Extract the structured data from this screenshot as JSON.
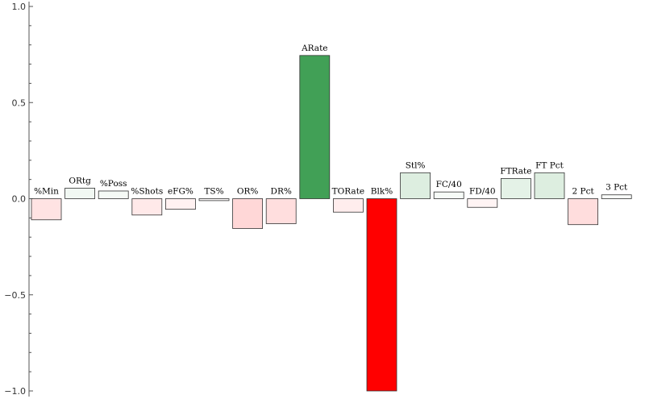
{
  "chart_data": {
    "type": "bar",
    "title": "",
    "xlabel": "",
    "ylabel": "",
    "ylim": [
      -1.0,
      1.0
    ],
    "yticks": [
      "1.0",
      "0.5",
      "0.0",
      "−0.5",
      "−1.0"
    ],
    "ytick_values": [
      1.0,
      0.5,
      0.0,
      -0.5,
      -1.0
    ],
    "grid": false,
    "legend": "none",
    "positive_color": "#007f1c",
    "negative_color": "#ff0000",
    "categories": [
      "%Min",
      "ORtg",
      "%Poss",
      "%Shots",
      "eFG%",
      "TS%",
      "OR%",
      "DR%",
      "ARate",
      "TORate",
      "Blk%",
      "Stl%",
      "FC/40",
      "FD/40",
      "FTRate",
      "FT Pct",
      "2 Pct",
      "3 Pct"
    ],
    "values": [
      -0.11,
      0.055,
      0.04,
      -0.085,
      -0.055,
      -0.01,
      -0.155,
      -0.13,
      0.745,
      -0.07,
      -1.0,
      0.135,
      0.035,
      -0.045,
      0.105,
      0.135,
      -0.135,
      0.02
    ]
  }
}
